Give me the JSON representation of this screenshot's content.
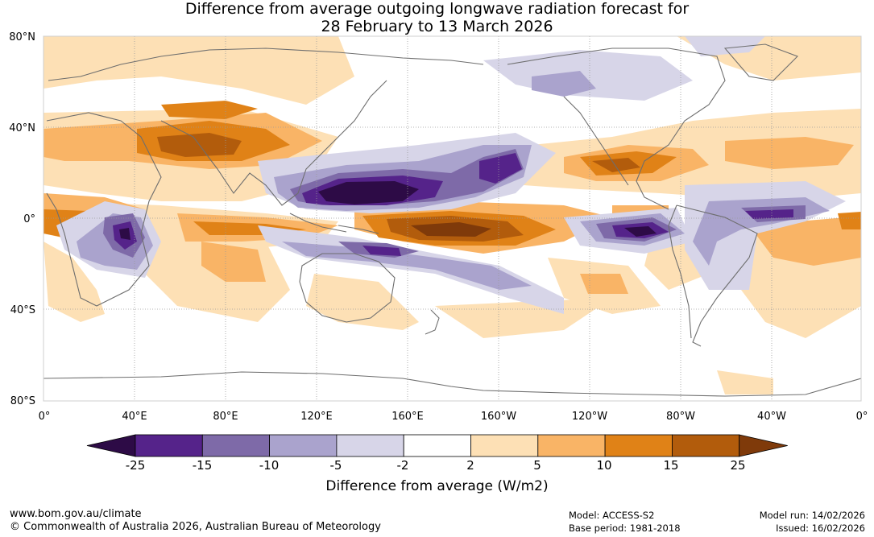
{
  "title": {
    "line1": "Difference from average outgoing longwave radiation forecast for",
    "line2": "28 February to 13 March 2026"
  },
  "axes": {
    "lat_labels": [
      "80°N",
      "40°N",
      "0°",
      "40°S",
      "80°S"
    ],
    "lon_labels": [
      "0°",
      "40°E",
      "80°E",
      "120°E",
      "160°E",
      "160°W",
      "120°W",
      "80°W",
      "40°W",
      "0°"
    ]
  },
  "colorbar": {
    "label": "Difference from average (W/m2)",
    "ticks": [
      "-25",
      "-15",
      "-10",
      "-5",
      "-2",
      "2",
      "5",
      "10",
      "15",
      "25"
    ],
    "colors": [
      "#2d0b46",
      "#55238a",
      "#7e6aa8",
      "#aaa3cd",
      "#d7d5e8",
      "#ffffff",
      "#fde0b5",
      "#f9b466",
      "#e08217",
      "#b25c0c",
      "#7f3a0a"
    ]
  },
  "footer": {
    "website": "www.bom.gov.au/climate",
    "copyright": "© Commonwealth of Australia 2026, Australian Bureau of Meteorology",
    "model": "Model: ACCESS-S2",
    "base_period": "Base period: 1981-2018",
    "model_run": "Model run: 14/02/2026",
    "issued": "Issued: 16/02/2026"
  }
}
